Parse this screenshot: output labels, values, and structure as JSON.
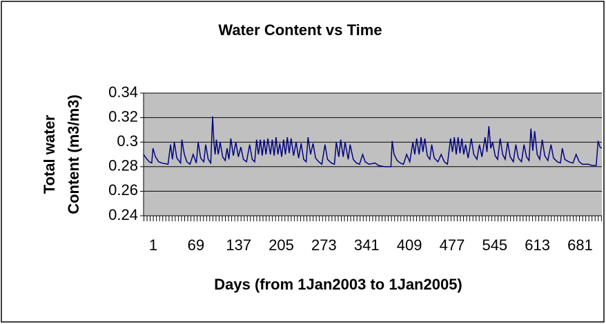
{
  "chart_data": {
    "type": "line",
    "title": "Water Content vs Time",
    "xlabel": "Days (from 1Jan2003 to 1Jan2005)",
    "ylabel": [
      "Total  water",
      "Content (m3/m3)"
    ],
    "xlim": [
      1,
      731
    ],
    "xticks": [
      1,
      69,
      137,
      205,
      273,
      341,
      409,
      477,
      545,
      613,
      681
    ],
    "ylim": [
      0.24,
      0.34
    ],
    "yticks": [
      0.24,
      0.26,
      0.28,
      0.3,
      0.32,
      0.34
    ],
    "grid": true,
    "series": [
      {
        "color": "#000080",
        "x": [
          1,
          5,
          10,
          14,
          16,
          20,
          25,
          30,
          40,
          44,
          47,
          50,
          54,
          60,
          62,
          66,
          70,
          75,
          80,
          85,
          88,
          92,
          97,
          100,
          104,
          108,
          111,
          113,
          115,
          117,
          120,
          123,
          127,
          131,
          134,
          137,
          140,
          144,
          148,
          152,
          156,
          160,
          165,
          170,
          174,
          178,
          181,
          184,
          187,
          190,
          193,
          196,
          199,
          203,
          206,
          209,
          212,
          215,
          218,
          221,
          224,
          227,
          230,
          233,
          236,
          240,
          244,
          248,
          252,
          256,
          260,
          263,
          267,
          271,
          275,
          280,
          285,
          290,
          294,
          300,
          305,
          308,
          312,
          315,
          319,
          322,
          327,
          330,
          335,
          340,
          345,
          350,
          354,
          360,
          370,
          375,
          385,
          395,
          397,
          400,
          405,
          410,
          415,
          420,
          425,
          430,
          433,
          436,
          440,
          443,
          446,
          449,
          453,
          457,
          460,
          464,
          470,
          475,
          480,
          485,
          490,
          493,
          496,
          499,
          502,
          505,
          508,
          511,
          514,
          518,
          523,
          527,
          532,
          536,
          540,
          545,
          548,
          551,
          554,
          557,
          561,
          565,
          569,
          573,
          577,
          581,
          585,
          590,
          594,
          598,
          603,
          607,
          611,
          615,
          618,
          621,
          624,
          628,
          632,
          636,
          640,
          645,
          650,
          654,
          660,
          665,
          668,
          672,
          678,
          685,
          690,
          695,
          700,
          710,
          715,
          722,
          725,
          728,
          731
        ],
        "values": [
          0.29,
          0.287,
          0.284,
          0.283,
          0.295,
          0.288,
          0.284,
          0.283,
          0.282,
          0.298,
          0.286,
          0.3,
          0.287,
          0.283,
          0.302,
          0.29,
          0.284,
          0.282,
          0.29,
          0.283,
          0.3,
          0.287,
          0.284,
          0.298,
          0.286,
          0.283,
          0.321,
          0.3,
          0.29,
          0.302,
          0.29,
          0.3,
          0.288,
          0.285,
          0.295,
          0.286,
          0.303,
          0.289,
          0.3,
          0.288,
          0.296,
          0.286,
          0.284,
          0.298,
          0.286,
          0.284,
          0.302,
          0.29,
          0.302,
          0.289,
          0.302,
          0.29,
          0.303,
          0.29,
          0.302,
          0.289,
          0.304,
          0.29,
          0.299,
          0.288,
          0.302,
          0.29,
          0.304,
          0.291,
          0.303,
          0.289,
          0.3,
          0.287,
          0.299,
          0.286,
          0.284,
          0.304,
          0.29,
          0.299,
          0.287,
          0.284,
          0.282,
          0.298,
          0.286,
          0.283,
          0.282,
          0.3,
          0.288,
          0.302,
          0.288,
          0.3,
          0.286,
          0.298,
          0.286,
          0.283,
          0.282,
          0.29,
          0.284,
          0.282,
          0.283,
          0.281,
          0.28,
          0.28,
          0.301,
          0.29,
          0.285,
          0.283,
          0.282,
          0.29,
          0.284,
          0.3,
          0.29,
          0.303,
          0.29,
          0.304,
          0.292,
          0.303,
          0.289,
          0.286,
          0.298,
          0.287,
          0.284,
          0.29,
          0.284,
          0.282,
          0.303,
          0.292,
          0.304,
          0.29,
          0.304,
          0.291,
          0.303,
          0.29,
          0.298,
          0.287,
          0.303,
          0.29,
          0.286,
          0.298,
          0.288,
          0.304,
          0.292,
          0.313,
          0.295,
          0.3,
          0.289,
          0.286,
          0.303,
          0.29,
          0.286,
          0.3,
          0.288,
          0.284,
          0.298,
          0.287,
          0.284,
          0.298,
          0.288,
          0.285,
          0.311,
          0.293,
          0.309,
          0.29,
          0.286,
          0.302,
          0.289,
          0.285,
          0.298,
          0.287,
          0.284,
          0.283,
          0.295,
          0.286,
          0.284,
          0.283,
          0.29,
          0.284,
          0.282,
          0.282,
          0.281,
          0.281,
          0.301,
          0.296,
          0.295
        ]
      }
    ]
  }
}
